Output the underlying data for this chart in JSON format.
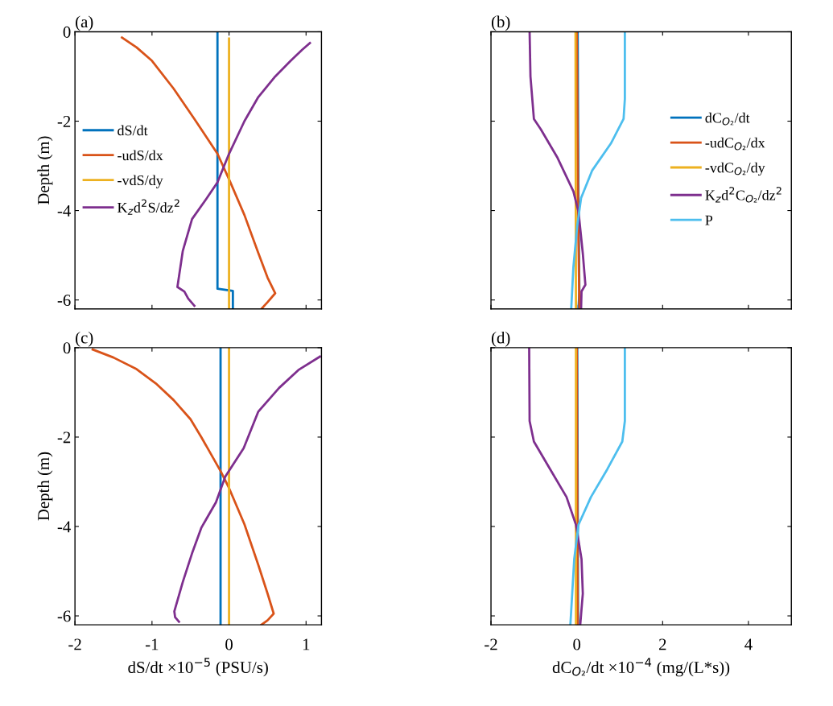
{
  "chart_data": [
    {
      "type": "line",
      "title": "(a)",
      "ylabel": "Depth (m)",
      "xlim": [
        -2,
        1.2
      ],
      "ylim": [
        -6.2,
        0
      ],
      "xticks": [
        -2,
        -1,
        0,
        1
      ],
      "yticks": [
        0,
        -2,
        -4,
        -6
      ],
      "tick_labels": "y",
      "legend": "center left",
      "series": [
        {
          "name": "dS/dt",
          "color": "#0072bd",
          "x": [
            -0.15,
            -0.15,
            0.05,
            0.05
          ],
          "values": [
            0,
            -5.75,
            -5.8,
            -6.2
          ]
        },
        {
          "name": "-udS/dx",
          "color": "#d95319",
          "x": [
            -1.39,
            -1.2,
            -1.0,
            -0.72,
            -0.45,
            -0.15,
            0,
            0.2,
            0.38,
            0.5,
            0.6,
            0.5,
            0.42
          ],
          "values": [
            -0.13,
            -0.35,
            -0.65,
            -1.27,
            -1.95,
            -2.73,
            -3.3,
            -4.1,
            -4.95,
            -5.5,
            -5.85,
            -6.05,
            -6.2
          ]
        },
        {
          "name": "-vdS/dy",
          "color": "#edb120",
          "x": [
            0.0,
            0.0
          ],
          "values": [
            -0.15,
            -6.2
          ]
        },
        {
          "name": "K$_{z}$d$^{2}$S/dz$^{2}$",
          "color": "#7e2f8e",
          "x": [
            1.05,
            0.95,
            0.8,
            0.6,
            0.38,
            0.2,
            0.0,
            -0.15,
            -0.3,
            -0.48,
            -0.6,
            -0.67,
            -0.58,
            -0.53,
            -0.45
          ],
          "values": [
            -0.25,
            -0.4,
            -0.65,
            -1.0,
            -1.46,
            -2.0,
            -2.73,
            -3.37,
            -3.75,
            -4.19,
            -4.9,
            -5.71,
            -5.81,
            -5.97,
            -6.13
          ]
        }
      ]
    },
    {
      "type": "line",
      "title": "(b)",
      "xlim": [
        -2,
        5
      ],
      "ylim": [
        -6.2,
        0
      ],
      "xticks": [
        -2,
        0,
        2,
        4
      ],
      "yticks": [
        0,
        -2,
        -4,
        -6
      ],
      "tick_labels": false,
      "legend": "right",
      "series": [
        {
          "name": "dC$_{O₂}$/dt",
          "color": "#0072bd",
          "x": [
            0.02,
            0.04,
            0.06,
            0.04
          ],
          "values": [
            0,
            -4,
            -5.8,
            -6.2
          ]
        },
        {
          "name": "-udC$_{O₂}$/dx",
          "color": "#d95319",
          "x": [
            0.0,
            0.03,
            0.06
          ],
          "values": [
            0,
            -4,
            -6.2
          ]
        },
        {
          "name": "-vdC$_{O₂}$/dy",
          "color": "#edb120",
          "x": [
            -0.03,
            -0.02
          ],
          "values": [
            0,
            -6.2
          ]
        },
        {
          "name": "K$_{z}$d$^{2}$C$_{O₂}$/dz$^{2}$",
          "color": "#7e2f8e",
          "x": [
            -1.1,
            -1.08,
            -1.0,
            -0.84,
            -0.46,
            -0.08,
            0.04,
            0.14,
            0.2,
            0.11,
            0.1
          ],
          "values": [
            0,
            -1.0,
            -1.95,
            -2.18,
            -2.8,
            -3.57,
            -4.03,
            -4.96,
            -5.66,
            -5.81,
            -6.2
          ]
        },
        {
          "name": "P",
          "color": "#4dbeee",
          "x": [
            1.12,
            1.12,
            1.09,
            0.8,
            0.36,
            0.1,
            0.01,
            -0.08,
            -0.13
          ],
          "values": [
            0,
            -1.5,
            -1.95,
            -2.49,
            -3.1,
            -3.72,
            -4.34,
            -5.27,
            -6.2
          ]
        }
      ]
    },
    {
      "type": "line",
      "title": "(c)",
      "ylabel": "Depth (m)",
      "xlabel": "dS/dt ×10$^{−5}$ (PSU/s)",
      "xlim": [
        -2,
        1.2
      ],
      "ylim": [
        -6.2,
        0
      ],
      "xticks": [
        -2,
        -1,
        0,
        1
      ],
      "yticks": [
        0,
        -2,
        -4,
        -6
      ],
      "series": [
        {
          "color": "#0072bd",
          "x": [
            -0.11,
            -0.11
          ],
          "values": [
            0,
            -6.2
          ]
        },
        {
          "color": "#d95319",
          "x": [
            -1.77,
            -1.5,
            -1.2,
            -0.95,
            -0.72,
            -0.5,
            -0.36,
            -0.11,
            0,
            0.2,
            0.38,
            0.5,
            0.58,
            0.5,
            0.42
          ],
          "values": [
            -0.04,
            -0.22,
            -0.48,
            -0.8,
            -1.17,
            -1.6,
            -2.0,
            -2.76,
            -3.14,
            -3.95,
            -4.86,
            -5.5,
            -5.95,
            -6.1,
            -6.2
          ]
        },
        {
          "color": "#edb120",
          "x": [
            0.0,
            0.0
          ],
          "values": [
            0,
            -6.2
          ]
        },
        {
          "color": "#7e2f8e",
          "x": [
            1.18,
            0.9,
            0.65,
            0.38,
            0.19,
            -0.05,
            -0.17,
            -0.36,
            -0.48,
            -0.6,
            -0.71,
            -0.7,
            -0.65
          ],
          "values": [
            -0.2,
            -0.5,
            -0.9,
            -1.43,
            -2.25,
            -2.89,
            -3.46,
            -4.03,
            -4.6,
            -5.24,
            -5.9,
            -6.03,
            -6.13
          ]
        }
      ]
    },
    {
      "type": "line",
      "title": "(d)",
      "xlabel": "dC$_{O₂}$/dt ×10$^{−4}$ (mg/(L*s))",
      "xlim": [
        -2,
        5
      ],
      "ylim": [
        -6.2,
        0
      ],
      "xticks": [
        -2,
        0,
        2,
        4
      ],
      "yticks": [
        0,
        -2,
        -4,
        -6
      ],
      "tick_labels": "x",
      "series": [
        {
          "color": "#0072bd",
          "x": [
            0.01,
            0.03
          ],
          "values": [
            0,
            -6.2
          ]
        },
        {
          "color": "#d95319",
          "x": [
            0.0,
            0.02
          ],
          "values": [
            0,
            -6.2
          ]
        },
        {
          "color": "#edb120",
          "x": [
            -0.02,
            -0.02
          ],
          "values": [
            0,
            -6.2
          ]
        },
        {
          "color": "#7e2f8e",
          "x": [
            -1.11,
            -1.1,
            -1.0,
            -0.62,
            -0.24,
            -0.02,
            0.11,
            0.14,
            0.08
          ],
          "values": [
            0,
            -1.64,
            -2.1,
            -2.72,
            -3.34,
            -3.96,
            -4.73,
            -5.5,
            -6.2
          ]
        },
        {
          "color": "#4dbeee",
          "x": [
            1.12,
            1.12,
            1.06,
            0.71,
            0.33,
            0.04,
            -0.06,
            -0.15
          ],
          "values": [
            0,
            -1.64,
            -2.1,
            -2.72,
            -3.34,
            -3.96,
            -4.73,
            -6.2
          ]
        }
      ]
    }
  ]
}
